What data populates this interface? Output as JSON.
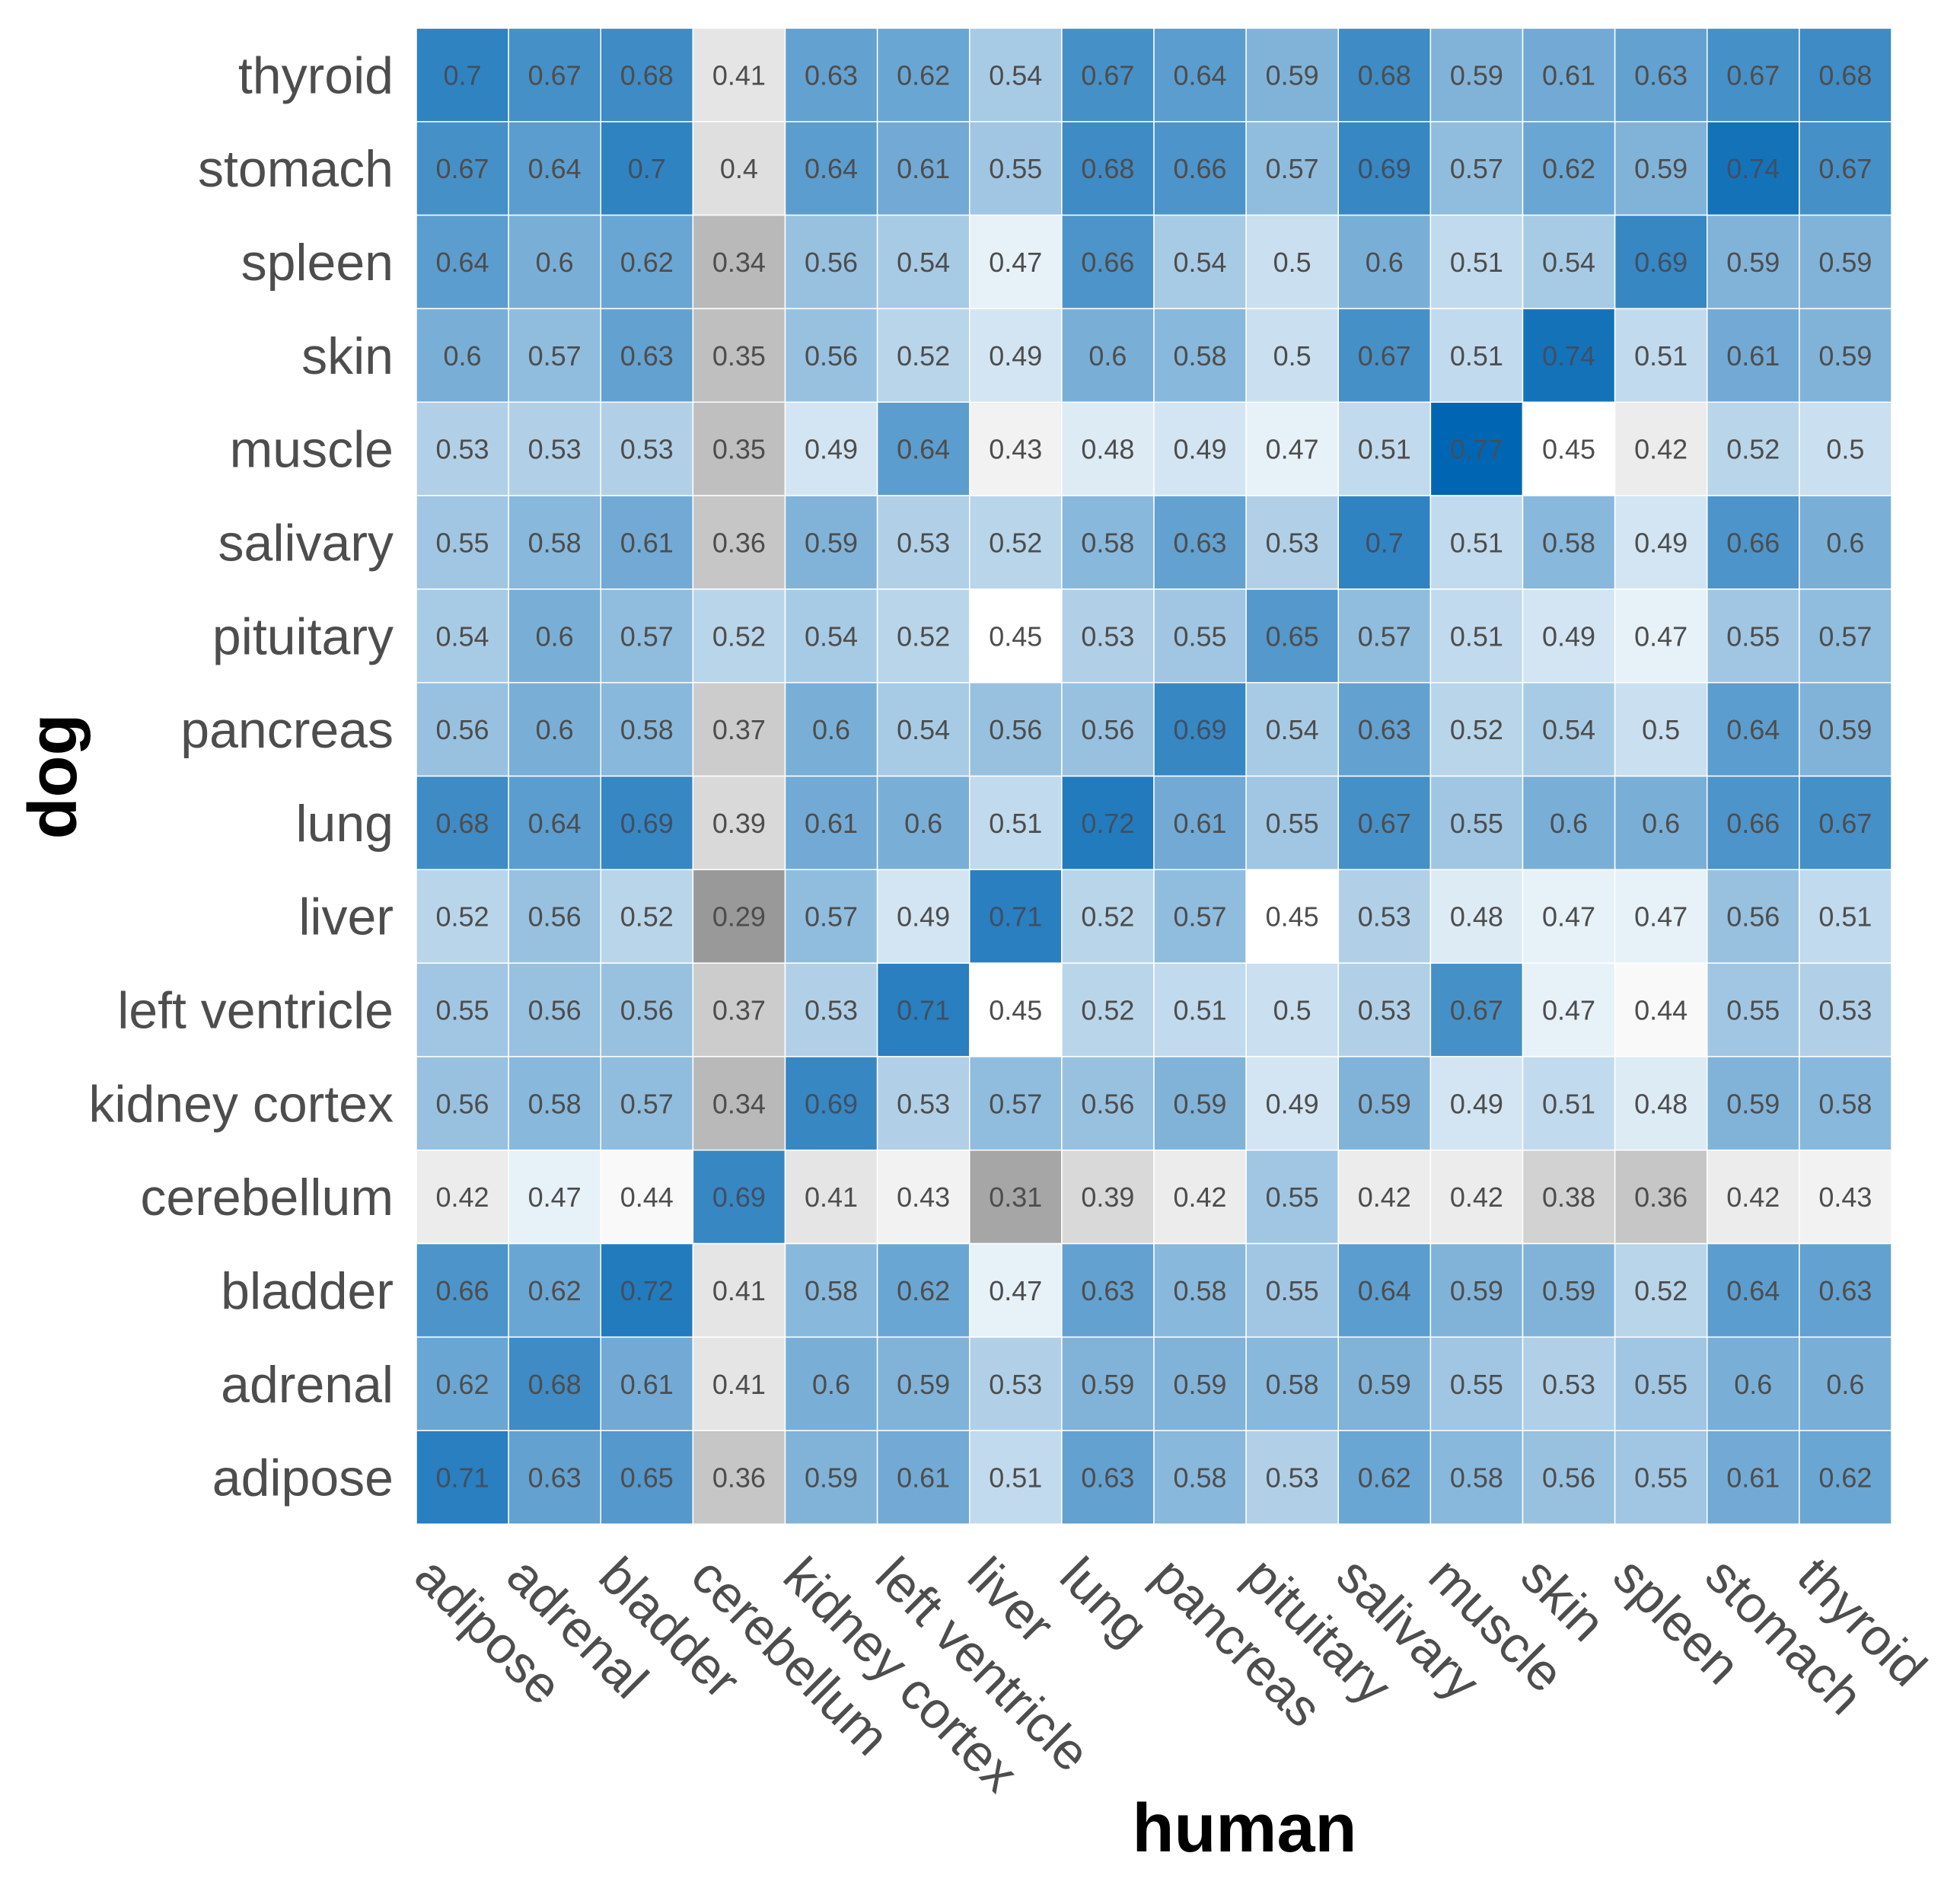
{
  "chart_data": {
    "type": "heatmap",
    "title": "",
    "xlabel": "human",
    "ylabel": "dog",
    "x_categories": [
      "adipose",
      "adrenal",
      "bladder",
      "cerebellum",
      "kidney cortex",
      "left ventricle",
      "liver",
      "lung",
      "pancreas",
      "pituitary",
      "salivary",
      "muscle",
      "skin",
      "spleen",
      "stomach",
      "thyroid"
    ],
    "y_categories_top_to_bottom": [
      "thyroid",
      "stomach",
      "spleen",
      "skin",
      "muscle",
      "salivary",
      "pituitary",
      "pancreas",
      "lung",
      "liver",
      "left ventricle",
      "kidney cortex",
      "cerebellum",
      "bladder",
      "adrenal",
      "adipose"
    ],
    "values": [
      [
        0.7,
        0.67,
        0.68,
        0.41,
        0.63,
        0.62,
        0.54,
        0.67,
        0.64,
        0.59,
        0.68,
        0.59,
        0.61,
        0.63,
        0.67,
        0.68
      ],
      [
        0.67,
        0.64,
        0.7,
        0.4,
        0.64,
        0.61,
        0.55,
        0.68,
        0.66,
        0.57,
        0.69,
        0.57,
        0.62,
        0.59,
        0.74,
        0.67
      ],
      [
        0.64,
        0.6,
        0.62,
        0.34,
        0.56,
        0.54,
        0.47,
        0.66,
        0.54,
        0.5,
        0.6,
        0.51,
        0.54,
        0.69,
        0.59,
        0.59
      ],
      [
        0.6,
        0.57,
        0.63,
        0.35,
        0.56,
        0.52,
        0.49,
        0.6,
        0.58,
        0.5,
        0.67,
        0.51,
        0.74,
        0.51,
        0.61,
        0.59
      ],
      [
        0.53,
        0.53,
        0.53,
        0.35,
        0.49,
        0.64,
        0.43,
        0.48,
        0.49,
        0.47,
        0.51,
        0.77,
        0.45,
        0.42,
        0.52,
        0.5
      ],
      [
        0.55,
        0.58,
        0.61,
        0.36,
        0.59,
        0.53,
        0.52,
        0.58,
        0.63,
        0.53,
        0.7,
        0.51,
        0.58,
        0.49,
        0.66,
        0.6
      ],
      [
        0.54,
        0.6,
        0.57,
        0.52,
        0.54,
        0.52,
        0.45,
        0.53,
        0.55,
        0.65,
        0.57,
        0.51,
        0.49,
        0.47,
        0.55,
        0.57
      ],
      [
        0.56,
        0.6,
        0.58,
        0.37,
        0.6,
        0.54,
        0.56,
        0.56,
        0.69,
        0.54,
        0.63,
        0.52,
        0.54,
        0.5,
        0.64,
        0.59
      ],
      [
        0.68,
        0.64,
        0.69,
        0.39,
        0.61,
        0.6,
        0.51,
        0.72,
        0.61,
        0.55,
        0.67,
        0.55,
        0.6,
        0.6,
        0.66,
        0.67
      ],
      [
        0.52,
        0.56,
        0.52,
        0.29,
        0.57,
        0.49,
        0.71,
        0.52,
        0.57,
        0.45,
        0.53,
        0.48,
        0.47,
        0.47,
        0.56,
        0.51
      ],
      [
        0.55,
        0.56,
        0.56,
        0.37,
        0.53,
        0.71,
        0.45,
        0.52,
        0.51,
        0.5,
        0.53,
        0.67,
        0.47,
        0.44,
        0.55,
        0.53
      ],
      [
        0.56,
        0.58,
        0.57,
        0.34,
        0.69,
        0.53,
        0.57,
        0.56,
        0.59,
        0.49,
        0.59,
        0.49,
        0.51,
        0.48,
        0.59,
        0.58
      ],
      [
        0.42,
        0.47,
        0.44,
        0.69,
        0.41,
        0.43,
        0.31,
        0.39,
        0.42,
        0.55,
        0.42,
        0.42,
        0.38,
        0.36,
        0.42,
        0.43
      ],
      [
        0.66,
        0.62,
        0.72,
        0.41,
        0.58,
        0.62,
        0.47,
        0.63,
        0.58,
        0.55,
        0.64,
        0.59,
        0.59,
        0.52,
        0.64,
        0.63
      ],
      [
        0.62,
        0.68,
        0.61,
        0.41,
        0.6,
        0.59,
        0.53,
        0.59,
        0.59,
        0.58,
        0.59,
        0.55,
        0.53,
        0.55,
        0.6,
        0.6
      ],
      [
        0.71,
        0.63,
        0.65,
        0.36,
        0.59,
        0.61,
        0.51,
        0.63,
        0.58,
        0.53,
        0.62,
        0.58,
        0.56,
        0.55,
        0.61,
        0.62
      ]
    ],
    "color_scale": {
      "low_color": "#999999",
      "mid_color": "#ffffff",
      "high_color": "#0066b3",
      "low_value": 0.29,
      "mid_value": 0.45,
      "high_value": 0.77
    },
    "legend": "none",
    "grid": false
  }
}
